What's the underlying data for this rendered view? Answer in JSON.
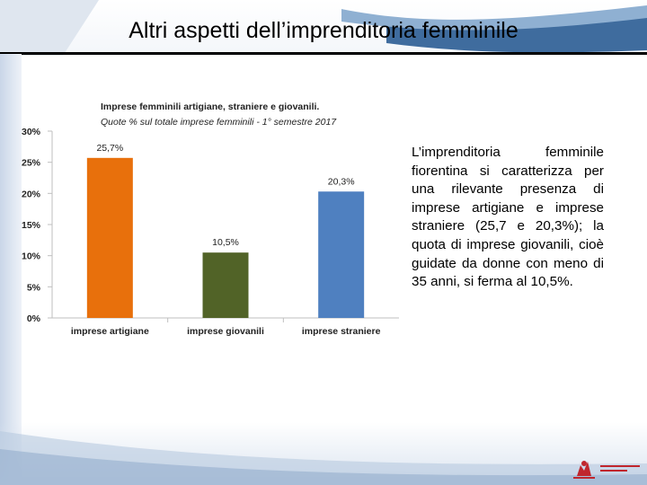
{
  "slide": {
    "title": "Altri aspetti dell’imprenditoria femminile",
    "body_text": "L’imprenditoria femminile fiorentina si caratterizza per una rilevante presenza di imprese artigiane e imprese straniere (25,7 e 20,3%); la quota di imprese giovanili, cioè guidate da donne con meno di 35 anni, si ferma al 10,5%."
  },
  "colors": {
    "artigiane": "#e8700c",
    "giovanili": "#516327",
    "straniere": "#4f80c0",
    "accent_header": "#2f5f95"
  },
  "chart_data": {
    "type": "bar",
    "title": "Imprese femminili artigiane, straniere e giovanili.",
    "subtitle": "Quote % sul totale imprese femminili  -  1° semestre 2017",
    "categories": [
      "imprese artigiane",
      "imprese giovanili",
      "imprese straniere"
    ],
    "values": [
      25.7,
      10.5,
      20.3
    ],
    "data_labels": [
      "25,7%",
      "10,5%",
      "20,3%"
    ],
    "bar_colors": [
      "#e8700c",
      "#516327",
      "#4f80c0"
    ],
    "y_ticks": [
      "0%",
      "5%",
      "10%",
      "15%",
      "20%",
      "25%",
      "30%"
    ],
    "y_tick_values": [
      0,
      5,
      10,
      15,
      20,
      25,
      30
    ],
    "ylim": [
      0,
      30
    ],
    "grid": false,
    "xlabel": "",
    "ylabel": ""
  }
}
